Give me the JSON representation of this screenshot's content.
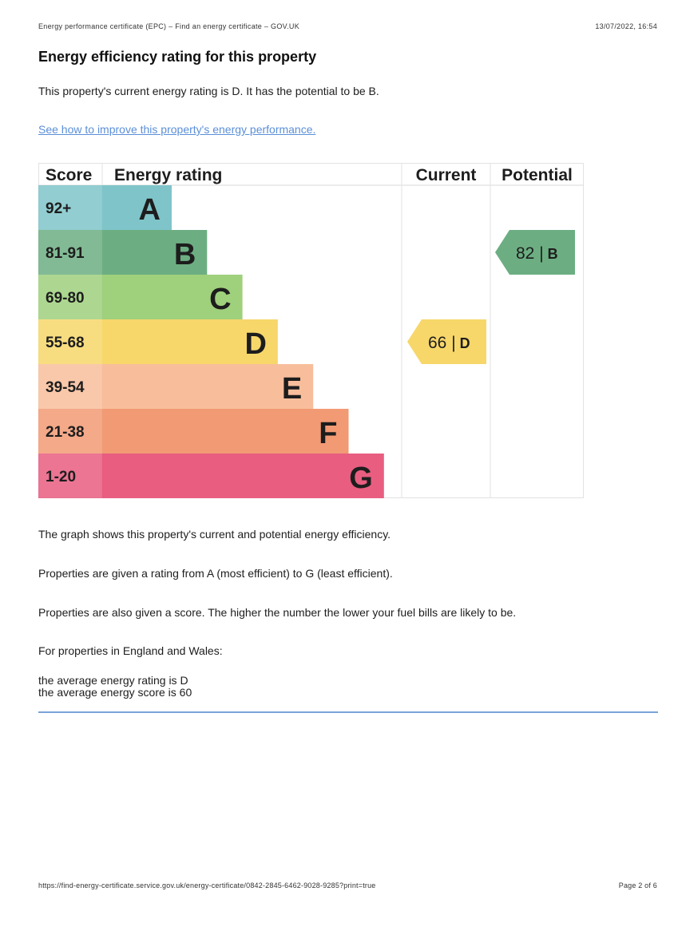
{
  "header": {
    "page_title": "Energy performance certificate (EPC) – Find an energy certificate – GOV.UK",
    "datetime": "13/07/2022, 16:54"
  },
  "heading": "Energy efficiency rating for this property",
  "intro": "This property's current energy rating is D. It has the potential to be B.",
  "improve_link": "See how to improve this property's energy performance.",
  "chart_data": {
    "type": "table",
    "columns": [
      "Score",
      "Energy rating",
      "Current",
      "Potential"
    ],
    "bands": [
      {
        "score": "92+",
        "letter": "A",
        "color": "#7fc4c9"
      },
      {
        "score": "81-91",
        "letter": "B",
        "color": "#6cae82"
      },
      {
        "score": "69-80",
        "letter": "C",
        "color": "#9fd07c"
      },
      {
        "score": "55-68",
        "letter": "D",
        "color": "#f7d76a"
      },
      {
        "score": "39-54",
        "letter": "E",
        "color": "#f8be9b"
      },
      {
        "score": "21-38",
        "letter": "F",
        "color": "#f29a74"
      },
      {
        "score": "1-20",
        "letter": "G",
        "color": "#e85d80"
      }
    ],
    "current": {
      "value": 66,
      "letter": "D",
      "label": "66 | D",
      "color": "#f7d76a"
    },
    "potential": {
      "value": 82,
      "letter": "B",
      "label": "82 | B",
      "color": "#6cae82"
    }
  },
  "explanations": [
    "The graph shows this property's current and potential energy efficiency.",
    "Properties are given a rating from A (most efficient) to G (least efficient).",
    "Properties are also given a score. The higher the number the lower your fuel bills are likely to be.",
    "For properties in England and Wales:"
  ],
  "averages": {
    "rating": "the average energy rating is D",
    "score": "the average energy score is 60"
  },
  "footer": {
    "url": "https://find-energy-certificate.service.gov.uk/energy-certificate/0842-2845-6462-9028-9285?print=true",
    "page": "Page 2 of 6"
  }
}
